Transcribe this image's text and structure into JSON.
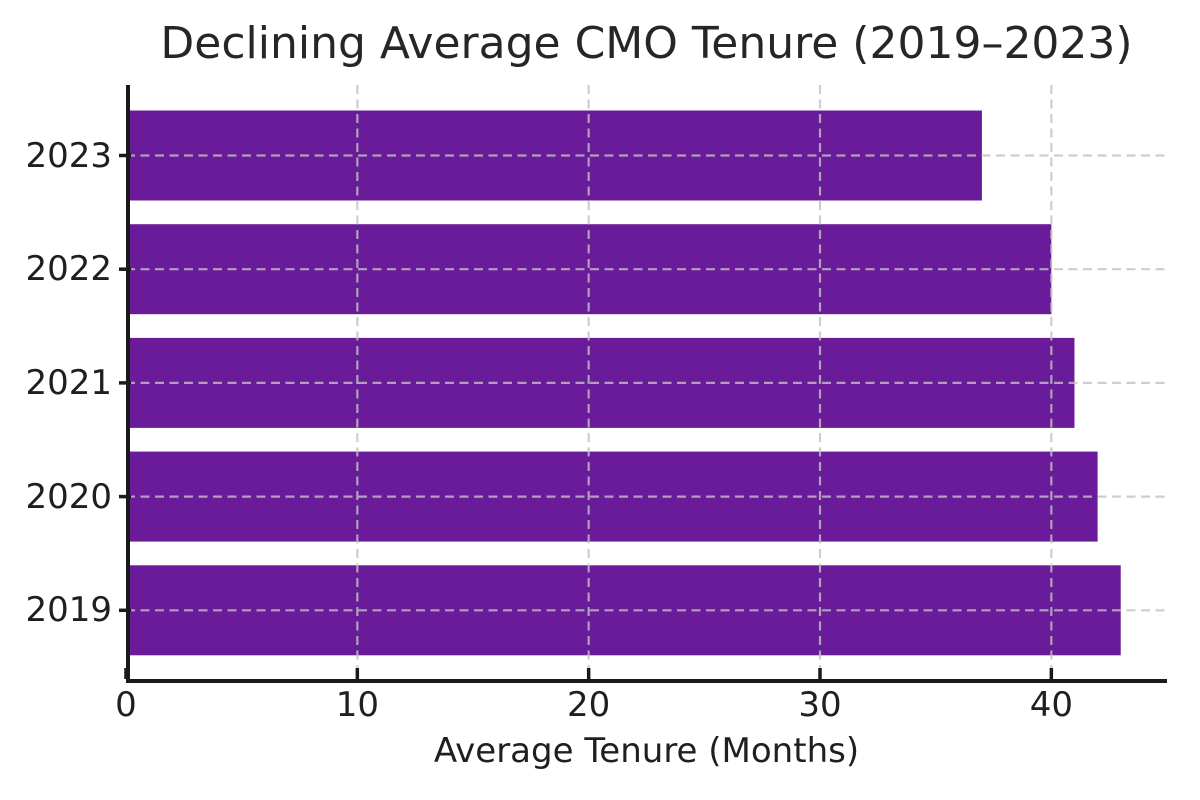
{
  "chart_data": {
    "type": "bar",
    "orientation": "horizontal",
    "title": "Declining Average CMO Tenure (2019–2023)",
    "xlabel": "Average Tenure (Months)",
    "ylabel": "",
    "categories": [
      "2023",
      "2022",
      "2021",
      "2020",
      "2019"
    ],
    "values": [
      37,
      40,
      41,
      42,
      43
    ],
    "xlim": [
      0,
      45
    ],
    "xticks": [
      0,
      10,
      20,
      30,
      40
    ],
    "legend": null,
    "grid": "dashed gridlines on both axes, drawn above bars",
    "bar_color": "#6A1B9A",
    "grid_color": "#c2c2c2",
    "axis_color": "#1a1a1a",
    "text_color": "#1f1f1f",
    "background_color": "#ffffff"
  }
}
